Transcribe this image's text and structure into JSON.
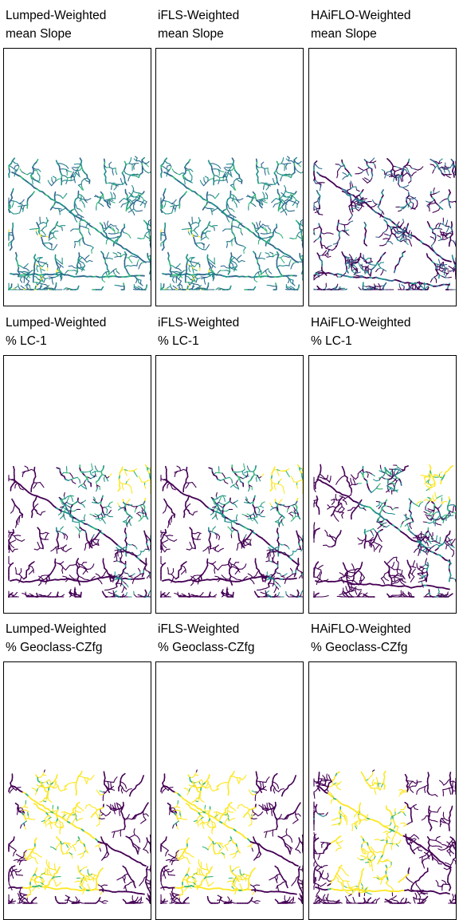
{
  "figure": {
    "panels": [
      {
        "title_line1": "Lumped-Weighted",
        "title_line2": "mean Slope",
        "scheme": "slope",
        "variant": 0
      },
      {
        "title_line1": "iFLS-Weighted",
        "title_line2": "mean Slope",
        "scheme": "slope",
        "variant": 0
      },
      {
        "title_line1": "HAiFLO-Weighted",
        "title_line2": "mean Slope",
        "scheme": "slope-dark",
        "variant": 1
      },
      {
        "title_line1": "Lumped-Weighted",
        "title_line2": "% LC-1",
        "scheme": "lc",
        "variant": 2
      },
      {
        "title_line1": "iFLS-Weighted",
        "title_line2": "% LC-1",
        "scheme": "lc",
        "variant": 2
      },
      {
        "title_line1": "HAiFLO-Weighted",
        "title_line2": "% LC-1",
        "scheme": "lc",
        "variant": 3
      },
      {
        "title_line1": "Lumped-Weighted",
        "title_line2": "% Geoclass-CZfg",
        "scheme": "geo",
        "variant": 4
      },
      {
        "title_line1": "iFLS-Weighted",
        "title_line2": "% Geoclass-CZfg",
        "scheme": "geo",
        "variant": 4
      },
      {
        "title_line1": "HAiFLO-Weighted",
        "title_line2": "% Geoclass-CZfg",
        "scheme": "geo",
        "variant": 5
      }
    ],
    "colors": {
      "viridis_dark": "#440154",
      "viridis_blue": "#31688e",
      "viridis_teal": "#21918c",
      "viridis_green": "#35b779",
      "viridis_yellow": "#fde725"
    }
  }
}
